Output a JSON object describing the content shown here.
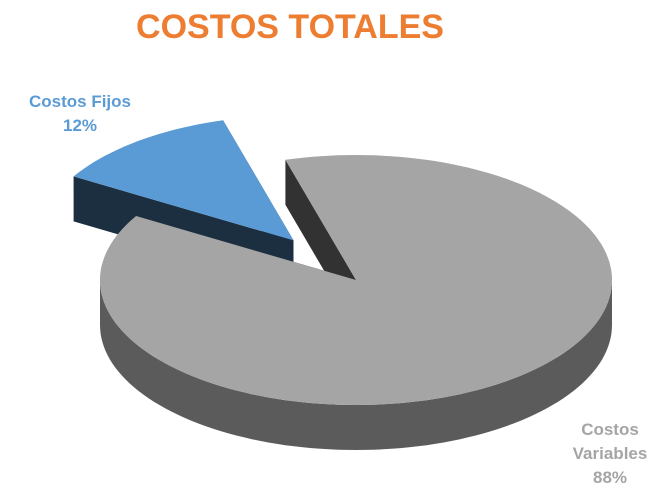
{
  "chart_data": {
    "type": "pie",
    "title": "COSTOS TOTALES",
    "categories": [
      "Costos Fijos",
      "Costos Variables"
    ],
    "values": [
      12,
      88
    ],
    "value_labels": [
      "12%",
      "88%"
    ],
    "colors": [
      "#5b9bd5",
      "#a5a5a5"
    ],
    "title_color": "#ed7d31"
  }
}
